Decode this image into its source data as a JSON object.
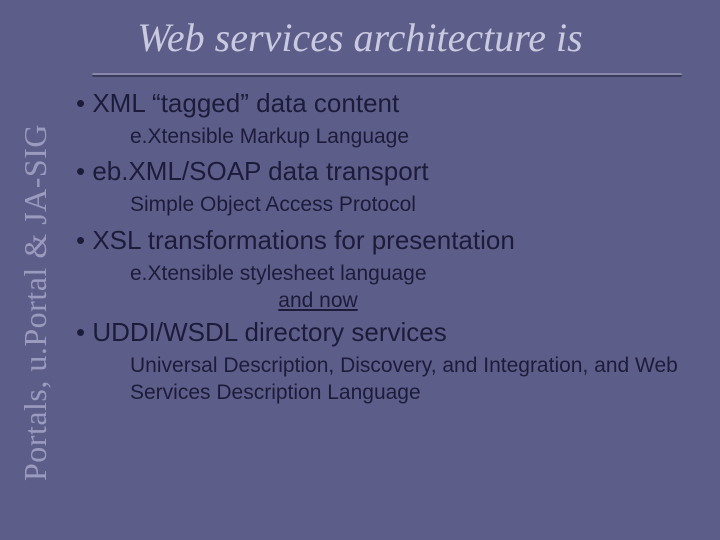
{
  "slide": {
    "title": "Web services architecture is",
    "sidebar_label": "Portals, u.Portal & JA-SIG",
    "bullets": [
      {
        "text": "• XML “tagged” data content",
        "sub": "e.Xtensible Markup Language"
      },
      {
        "text": "• eb.XML/SOAP data transport",
        "sub": "Simple Object Access Protocol"
      },
      {
        "text": "• XSL transformations for presentation",
        "sub": "e.Xtensible stylesheet language"
      }
    ],
    "transition": "and now",
    "bullet4": {
      "text": "• UDDI/WSDL directory services",
      "sub": "Universal Description, Discovery, and Integration, and Web Services Description Language"
    },
    "colors": {
      "background": "#5d5d8a",
      "title_color": "#c9c9e0",
      "sidebar_color": "#9b9bc0",
      "body_color": "#1c1c3a"
    },
    "typography": {
      "title_font": "Georgia serif italic",
      "title_size_pt": 40,
      "body_font": "Verdana sans-serif",
      "bullet_size_pt": 26,
      "sub_size_pt": 21,
      "sidebar_size_pt": 32
    }
  }
}
